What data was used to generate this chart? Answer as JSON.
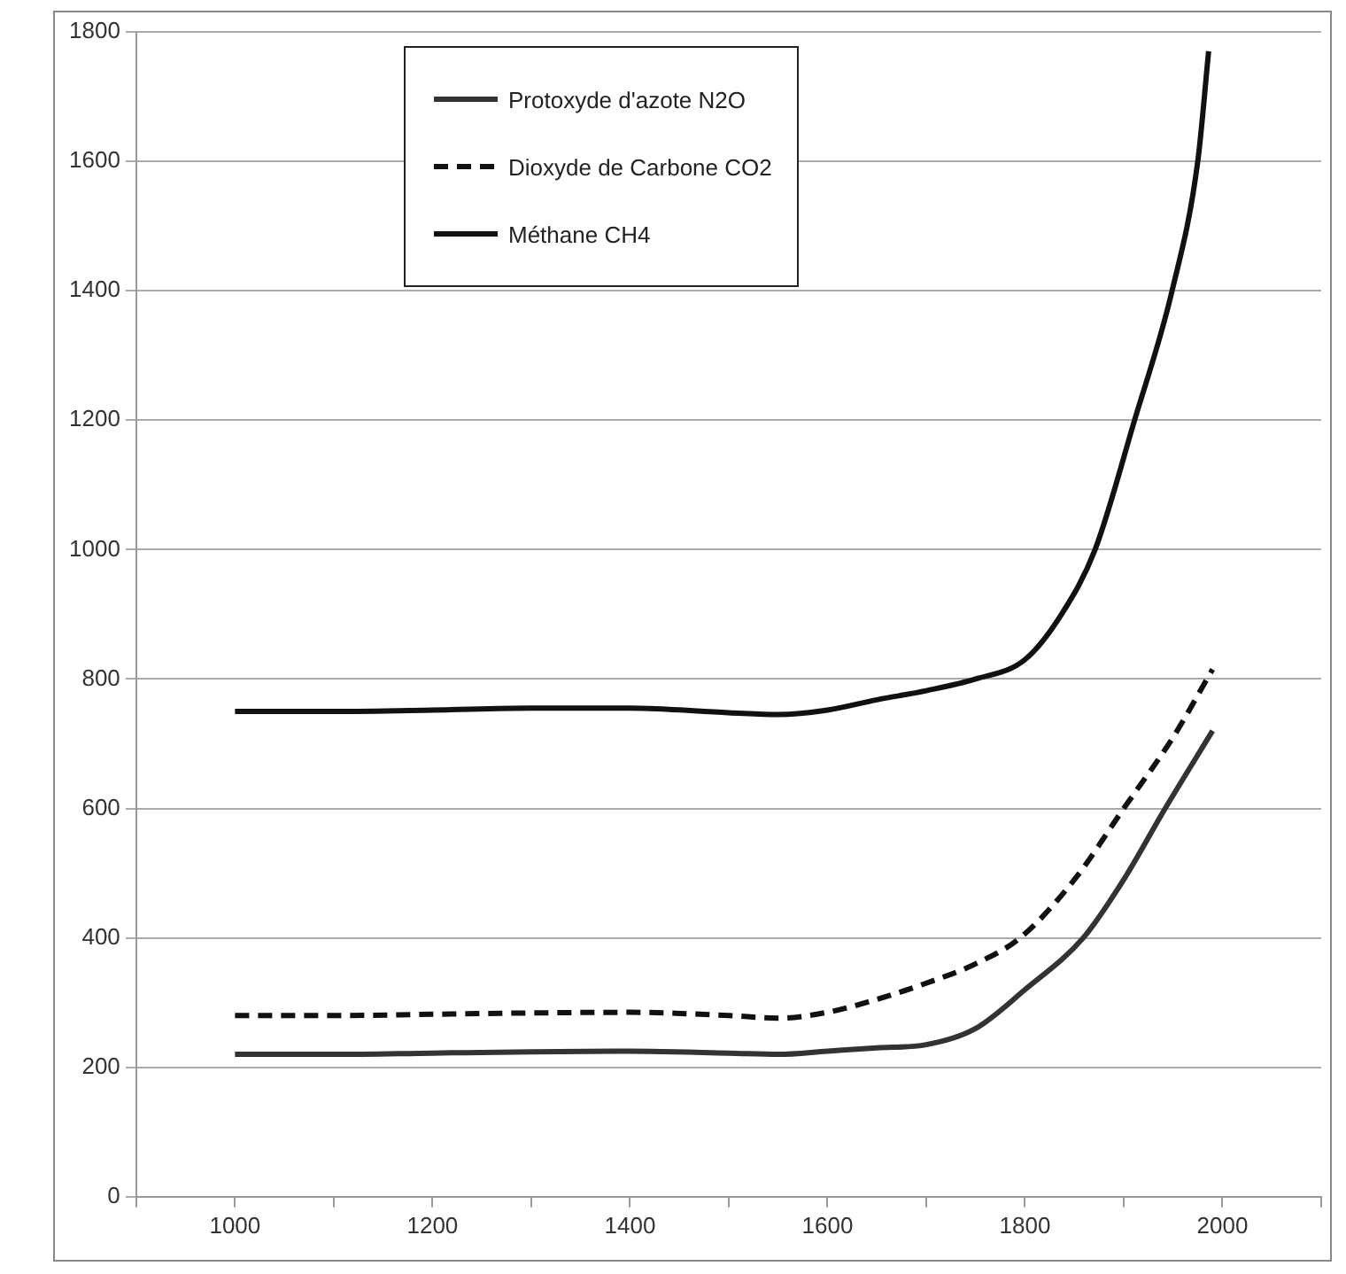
{
  "chart_data": {
    "type": "line",
    "legend": "top",
    "grid": "y",
    "marker": "none",
    "xlim": [
      900,
      2100
    ],
    "xticks": [
      {
        "value": 900,
        "label": null
      },
      1000,
      {
        "value": 1100,
        "label": null
      },
      1200,
      {
        "value": 1300,
        "label": null
      },
      1400,
      {
        "value": 1500,
        "label": null
      },
      1600,
      {
        "value": 1700,
        "label": null
      },
      1800,
      {
        "value": 1900,
        "label": null
      },
      2000,
      {
        "value": 2100,
        "label": null
      }
    ],
    "ylim": [
      0,
      1800
    ],
    "yticks": [
      0,
      200,
      400,
      600,
      800,
      1000,
      1200,
      1400,
      1600,
      1800
    ],
    "series": [
      {
        "name": "Protoxyde d'azote N2O",
        "color": "#333333",
        "line_style": "solid",
        "x": [
          1000,
          1100,
          1200,
          1300,
          1400,
          1500,
          1550,
          1600,
          1650,
          1700,
          1750,
          1800,
          1859,
          1900,
          1942,
          1990
        ],
        "values": [
          220,
          220,
          222,
          224,
          225,
          222,
          220,
          225,
          230,
          235,
          260,
          320,
          400,
          490,
          600,
          720
        ]
      },
      {
        "name": "Dioxyde de Carbone CO2",
        "color": "#111111",
        "line_style": "dashed",
        "x": [
          1000,
          1100,
          1200,
          1300,
          1400,
          1500,
          1550,
          1600,
          1650,
          1700,
          1750,
          1795,
          1850,
          1900,
          1950,
          1990
        ],
        "values": [
          280,
          280,
          282,
          284,
          285,
          280,
          276,
          285,
          305,
          330,
          360,
          400,
          490,
          600,
          710,
          815
        ]
      },
      {
        "name": "Méthane CH4",
        "color": "#111111",
        "line_style": "solid",
        "x": [
          1000,
          1100,
          1200,
          1300,
          1400,
          1500,
          1550,
          1600,
          1650,
          1700,
          1750,
          1800,
          1837,
          1871,
          1911,
          1949,
          1975,
          1986
        ],
        "values": [
          750,
          750,
          752,
          755,
          755,
          748,
          745,
          752,
          768,
          782,
          800,
          830,
          900,
          1000,
          1200,
          1400,
          1600,
          1770
        ]
      }
    ]
  }
}
